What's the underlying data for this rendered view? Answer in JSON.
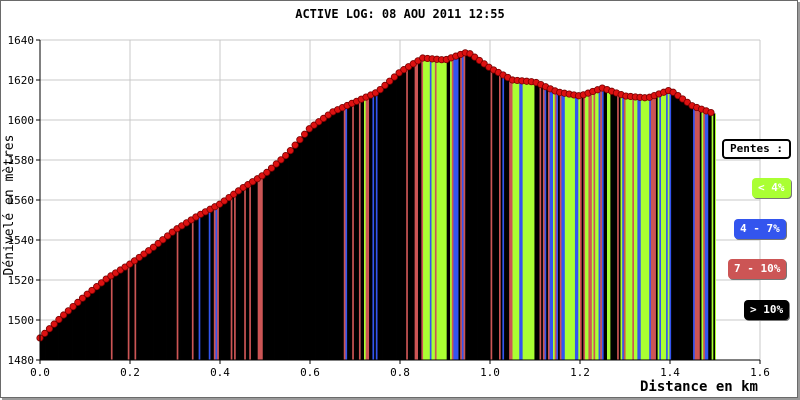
{
  "chart_data": {
    "type": "bar",
    "title": "ACTIVE LOG: 08 AOU 2011 12:55",
    "xlabel": "Distance en km",
    "ylabel": "Dénivelé en mètres",
    "xlim": [
      0.0,
      1.6
    ],
    "ylim": [
      1480,
      1640
    ],
    "xticks": [
      "0.0",
      "0.2",
      "0.4",
      "0.6",
      "0.8",
      "1.0",
      "1.2",
      "1.4",
      "1.6"
    ],
    "yticks": [
      "1480",
      "1500",
      "1520",
      "1540",
      "1560",
      "1580",
      "1600",
      "1620",
      "1640"
    ],
    "grid": true,
    "profile": {
      "x": [
        0.0,
        0.05,
        0.1,
        0.15,
        0.2,
        0.25,
        0.3,
        0.35,
        0.4,
        0.45,
        0.5,
        0.55,
        0.6,
        0.65,
        0.7,
        0.75,
        0.8,
        0.85,
        0.9,
        0.95,
        1.0,
        1.05,
        1.1,
        1.15,
        1.2,
        1.25,
        1.3,
        1.35,
        1.4,
        1.45,
        1.5
      ],
      "y": [
        1491,
        1502,
        1512,
        1521,
        1528,
        1536,
        1545,
        1552,
        1558,
        1566,
        1573,
        1583,
        1596,
        1604,
        1609,
        1614,
        1624,
        1631,
        1630,
        1634,
        1626,
        1620,
        1619,
        1614,
        1612,
        1616,
        1612,
        1611,
        1615,
        1607,
        1603
      ]
    },
    "legend": {
      "title": "Pentes :",
      "placement": "right",
      "entries": [
        {
          "label": "< 4%",
          "color": "#aaff33",
          "text_color": "#ffffff"
        },
        {
          "label": "4 - 7%",
          "color": "#3355ee",
          "text_color": "#ffffff"
        },
        {
          "label": "7 - 10%",
          "color": "#cc5555",
          "text_color": "#ffffff"
        },
        {
          "label": "> 10%",
          "color": "#000000",
          "text_color": "#ffffff"
        }
      ]
    },
    "marker_color": "#dd1111",
    "plot_background": "#ffffff"
  }
}
